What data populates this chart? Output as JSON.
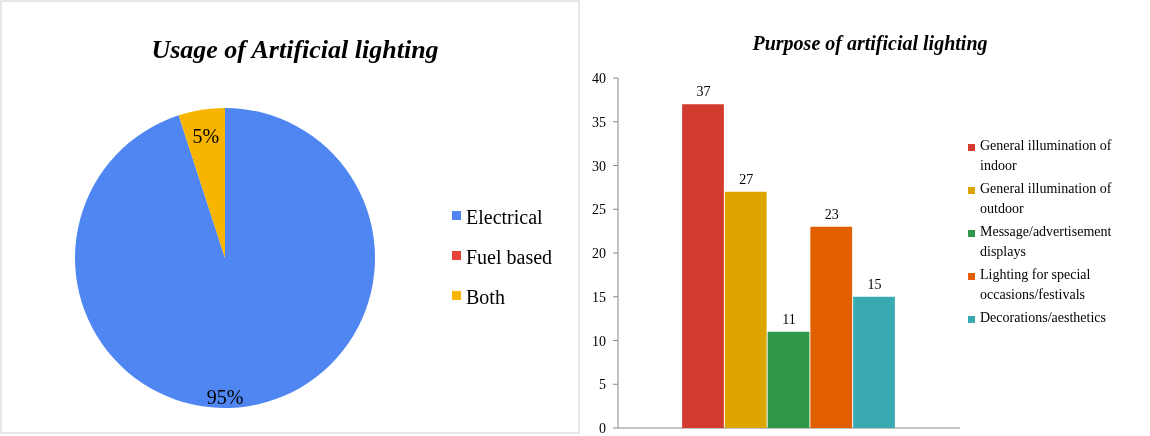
{
  "chart_data": [
    {
      "type": "pie",
      "title": "Usage of Artificial lighting",
      "categories": [
        "Electrical",
        "Fuel based",
        "Both"
      ],
      "values": [
        95,
        0,
        5
      ],
      "colors": [
        "#4f86f2",
        "#e8433a",
        "#f7b500"
      ],
      "value_labels": [
        "95%",
        null,
        "5%"
      ],
      "legend": "right"
    },
    {
      "type": "bar",
      "title": "Purpose of artificial lighting",
      "categories": [
        null
      ],
      "ylim": [
        0,
        40
      ],
      "yticks": [
        0,
        5,
        10,
        15,
        20,
        25,
        30,
        35,
        40
      ],
      "data_labels": true,
      "legend": "right",
      "series": [
        {
          "name": "General illumination of indoor",
          "color": "#d33b2f",
          "values": [
            37
          ]
        },
        {
          "name": "General illumination of outdoor",
          "color": "#dea500",
          "values": [
            27
          ]
        },
        {
          "name": "Message/advertisement displays",
          "color": "#2f9748",
          "values": [
            11
          ]
        },
        {
          "name": "Lighting for special occasions/festivals",
          "color": "#e25f00",
          "values": [
            23
          ]
        },
        {
          "name": "Decorations/aesthetics",
          "color": "#3aaab2",
          "values": [
            15
          ]
        }
      ]
    }
  ]
}
